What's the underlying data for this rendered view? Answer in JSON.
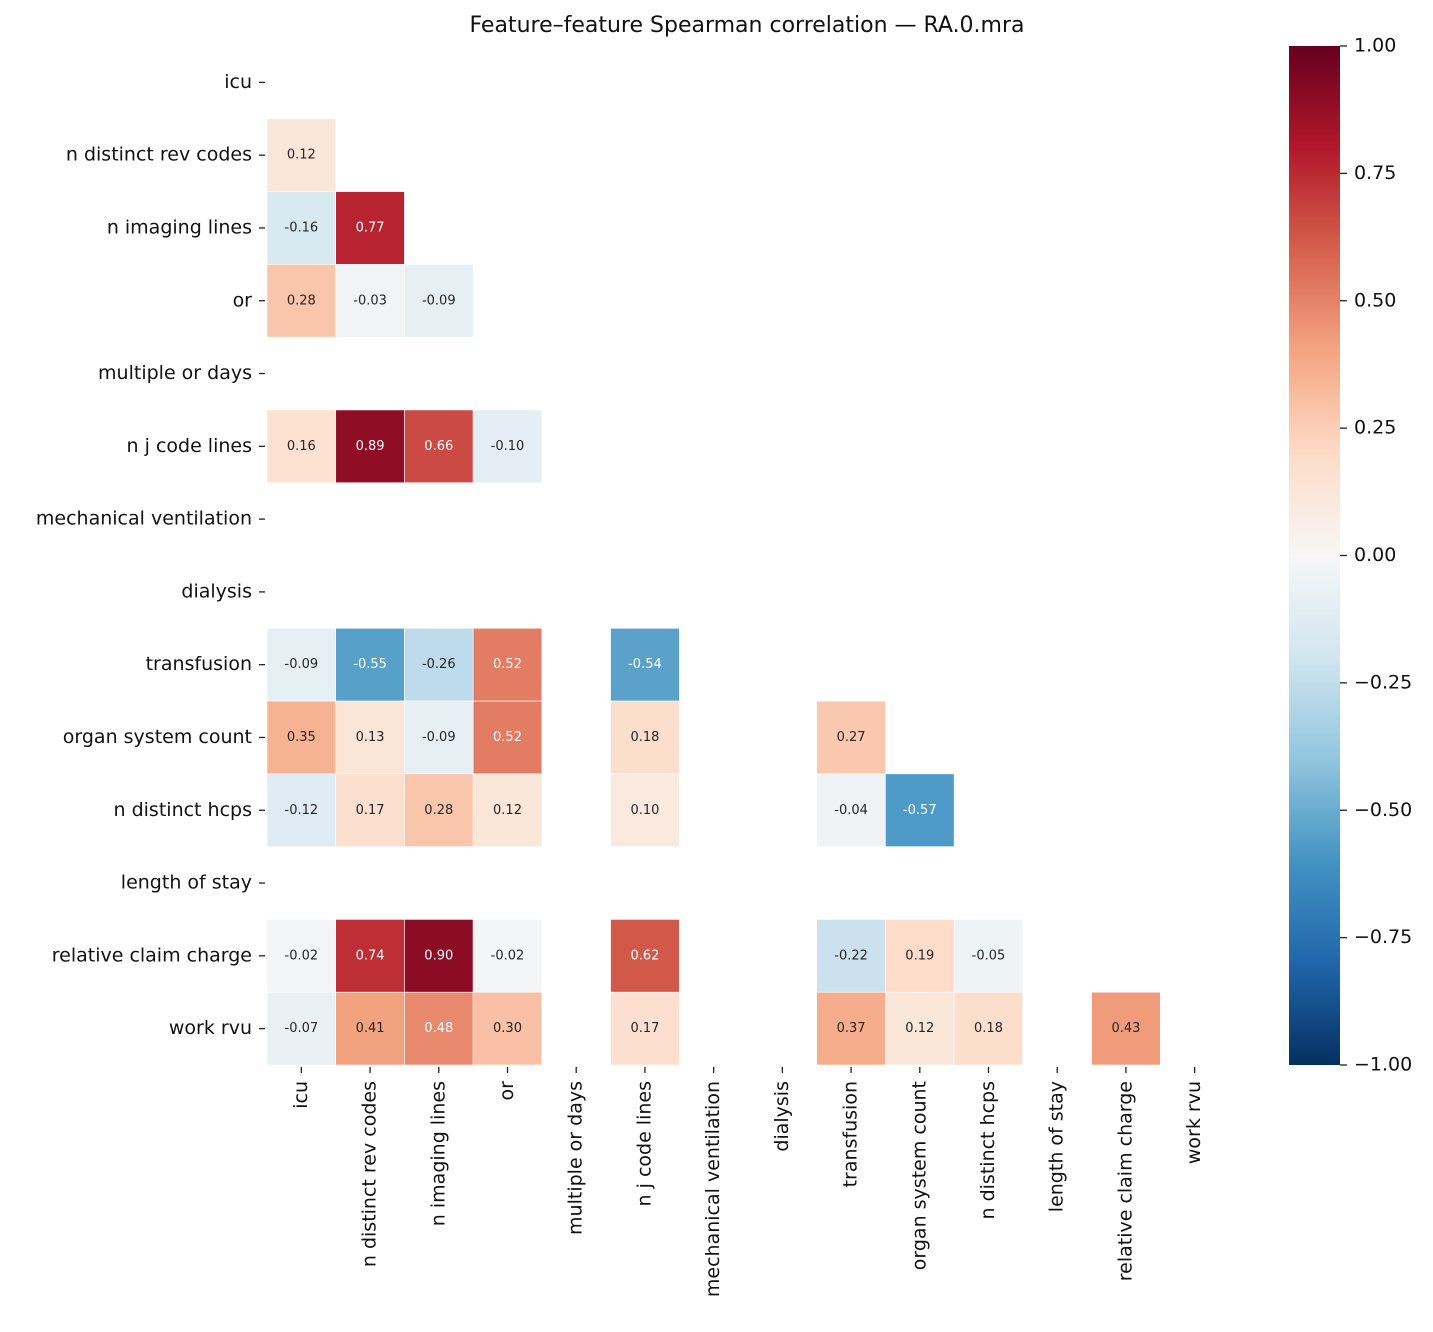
{
  "chart_data": {
    "type": "heatmap",
    "title": "Feature–feature Spearman correlation — RA.0.mra",
    "categories": [
      "icu",
      "n distinct rev codes",
      "n imaging lines",
      "or",
      "multiple or days",
      "n j code lines",
      "mechanical ventilation",
      "dialysis",
      "transfusion",
      "organ system count",
      "n distinct hcps",
      "length of stay",
      "relative claim charge",
      "work rvu"
    ],
    "values": [
      [
        null,
        null,
        null,
        null,
        null,
        null,
        null,
        null,
        null,
        null,
        null,
        null,
        null,
        null
      ],
      [
        0.12,
        null,
        null,
        null,
        null,
        null,
        null,
        null,
        null,
        null,
        null,
        null,
        null,
        null
      ],
      [
        -0.16,
        0.77,
        null,
        null,
        null,
        null,
        null,
        null,
        null,
        null,
        null,
        null,
        null,
        null
      ],
      [
        0.28,
        -0.03,
        -0.09,
        null,
        null,
        null,
        null,
        null,
        null,
        null,
        null,
        null,
        null,
        null
      ],
      [
        null,
        null,
        null,
        null,
        null,
        null,
        null,
        null,
        null,
        null,
        null,
        null,
        null,
        null
      ],
      [
        0.16,
        0.89,
        0.66,
        -0.1,
        null,
        null,
        null,
        null,
        null,
        null,
        null,
        null,
        null,
        null
      ],
      [
        null,
        null,
        null,
        null,
        null,
        null,
        null,
        null,
        null,
        null,
        null,
        null,
        null,
        null
      ],
      [
        null,
        null,
        null,
        null,
        null,
        null,
        null,
        null,
        null,
        null,
        null,
        null,
        null,
        null
      ],
      [
        -0.09,
        -0.55,
        -0.26,
        0.52,
        null,
        -0.54,
        null,
        null,
        null,
        null,
        null,
        null,
        null,
        null
      ],
      [
        0.35,
        0.13,
        -0.09,
        0.52,
        null,
        0.18,
        null,
        null,
        0.27,
        null,
        null,
        null,
        null,
        null
      ],
      [
        -0.12,
        0.17,
        0.28,
        0.12,
        null,
        0.1,
        null,
        null,
        -0.04,
        -0.57,
        null,
        null,
        null,
        null
      ],
      [
        null,
        null,
        null,
        null,
        null,
        null,
        null,
        null,
        null,
        null,
        null,
        null,
        null,
        null
      ],
      [
        -0.02,
        0.74,
        0.9,
        -0.02,
        null,
        0.62,
        null,
        null,
        -0.22,
        0.19,
        -0.05,
        null,
        null,
        null
      ],
      [
        -0.07,
        0.41,
        0.48,
        0.3,
        null,
        0.17,
        null,
        null,
        0.37,
        0.12,
        0.18,
        null,
        0.43,
        null
      ]
    ],
    "value_labels": [
      [
        null,
        null,
        null,
        null,
        null,
        null,
        null,
        null,
        null,
        null,
        null,
        null,
        null,
        null
      ],
      [
        "0.12",
        null,
        null,
        null,
        null,
        null,
        null,
        null,
        null,
        null,
        null,
        null,
        null,
        null
      ],
      [
        "-0.16",
        "0.77",
        null,
        null,
        null,
        null,
        null,
        null,
        null,
        null,
        null,
        null,
        null,
        null
      ],
      [
        "0.28",
        "-0.03",
        "-0.09",
        null,
        null,
        null,
        null,
        null,
        null,
        null,
        null,
        null,
        null,
        null
      ],
      [
        null,
        null,
        null,
        null,
        null,
        null,
        null,
        null,
        null,
        null,
        null,
        null,
        null,
        null
      ],
      [
        "0.16",
        "0.89",
        "0.66",
        "-0.10",
        null,
        null,
        null,
        null,
        null,
        null,
        null,
        null,
        null,
        null
      ],
      [
        null,
        null,
        null,
        null,
        null,
        null,
        null,
        null,
        null,
        null,
        null,
        null,
        null,
        null
      ],
      [
        null,
        null,
        null,
        null,
        null,
        null,
        null,
        null,
        null,
        null,
        null,
        null,
        null,
        null
      ],
      [
        "-0.09",
        "-0.55",
        "-0.26",
        "0.52",
        null,
        "-0.54",
        null,
        null,
        null,
        null,
        null,
        null,
        null,
        null
      ],
      [
        "0.35",
        "0.13",
        "-0.09",
        "0.52",
        null,
        "0.18",
        null,
        null,
        "0.27",
        null,
        null,
        null,
        null,
        null
      ],
      [
        "-0.12",
        "0.17",
        "0.28",
        "0.12",
        null,
        "0.10",
        null,
        null,
        "-0.04",
        "-0.57",
        null,
        null,
        null,
        null
      ],
      [
        null,
        null,
        null,
        null,
        null,
        null,
        null,
        null,
        null,
        null,
        null,
        null,
        null,
        null
      ],
      [
        "-0.02",
        "0.74",
        "0.90",
        "-0.02",
        null,
        "0.62",
        null,
        null,
        "-0.22",
        "0.19",
        "-0.05",
        null,
        null,
        null
      ],
      [
        "-0.07",
        "0.41",
        "0.48",
        "0.30",
        null,
        "0.17",
        null,
        null,
        "0.37",
        "0.12",
        "0.18",
        null,
        "0.43",
        null
      ]
    ],
    "colormap": [
      "#053061",
      "#2166ac",
      "#4393c3",
      "#92c5de",
      "#d1e5f0",
      "#f7f7f7",
      "#fddbc7",
      "#f4a582",
      "#d6604d",
      "#b2182b",
      "#67001f"
    ],
    "clim": [
      -1,
      1
    ],
    "cticks": [
      {
        "value": -1,
        "label": "−1.00"
      },
      {
        "value": -0.75,
        "label": "−0.75"
      },
      {
        "value": -0.5,
        "label": "−0.50"
      },
      {
        "value": -0.25,
        "label": "−0.25"
      },
      {
        "value": 0,
        "label": "0.00"
      },
      {
        "value": 0.25,
        "label": "0.25"
      },
      {
        "value": 0.5,
        "label": "0.50"
      },
      {
        "value": 0.75,
        "label": "0.75"
      },
      {
        "value": 1,
        "label": "1.00"
      }
    ]
  }
}
